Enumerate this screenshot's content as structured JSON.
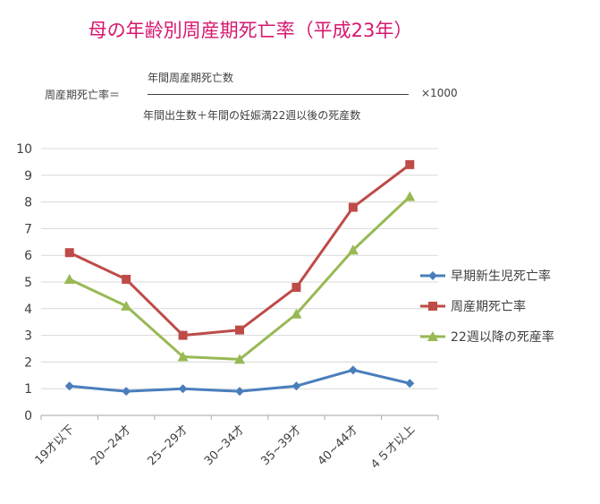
{
  "title": "母の年齢別周産期死亡率（平成23年）",
  "formula": {
    "lhs": "周産期死亡率＝",
    "numerator": "年間周産期死亡数",
    "denominator": "年間出生数＋年間の妊娠満22週以後の死産数",
    "multiplier": "×1000"
  },
  "chart_data": {
    "type": "line",
    "categories": [
      "19才以下",
      "20~24才",
      "25~29才",
      "30~34才",
      "35~39才",
      "40~44才",
      "４５才以上"
    ],
    "ylim": [
      0,
      10
    ],
    "yticks": [
      "0",
      "1",
      "2",
      "3",
      "4",
      "5",
      "6",
      "7",
      "8",
      "9",
      "10"
    ],
    "grid": true,
    "legend": "right",
    "series": [
      {
        "name": "早期新生児死亡率",
        "values": [
          1.1,
          0.9,
          1.0,
          0.9,
          1.1,
          1.7,
          1.2
        ],
        "color": "#4a7ebb",
        "marker": "diamond"
      },
      {
        "name": "周産期死亡率",
        "values": [
          6.1,
          5.1,
          3.0,
          3.2,
          4.8,
          7.8,
          9.4
        ],
        "color": "#be4b48",
        "marker": "square"
      },
      {
        "name": "22週以降の死産率",
        "values": [
          5.1,
          4.1,
          2.2,
          2.1,
          3.8,
          6.2,
          8.2
        ],
        "color": "#98b954",
        "marker": "triangle"
      }
    ]
  }
}
